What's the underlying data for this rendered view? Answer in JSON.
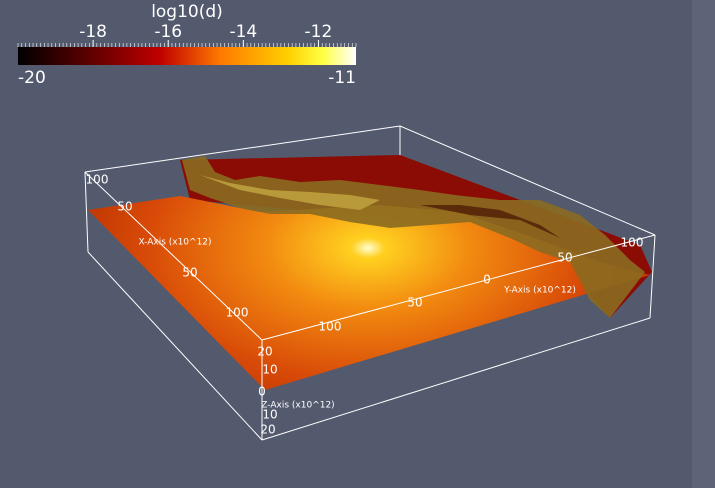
{
  "colorbar": {
    "title": "log10(d)",
    "range": [
      -20,
      -11
    ],
    "ticks": [
      -18,
      -16,
      -14,
      -12
    ]
  },
  "axes": [
    {
      "label": "X-Axis (x10^12)",
      "ticks": [
        "100",
        "50",
        "50",
        "100"
      ]
    },
    {
      "label": "Y-Axis (x10^12)",
      "ticks": [
        "100",
        "50",
        "0",
        "50",
        "100"
      ]
    },
    {
      "label": "Z-Axis (x10^12)",
      "ticks": [
        "20",
        "10",
        "0",
        "10",
        "20"
      ]
    }
  ]
}
